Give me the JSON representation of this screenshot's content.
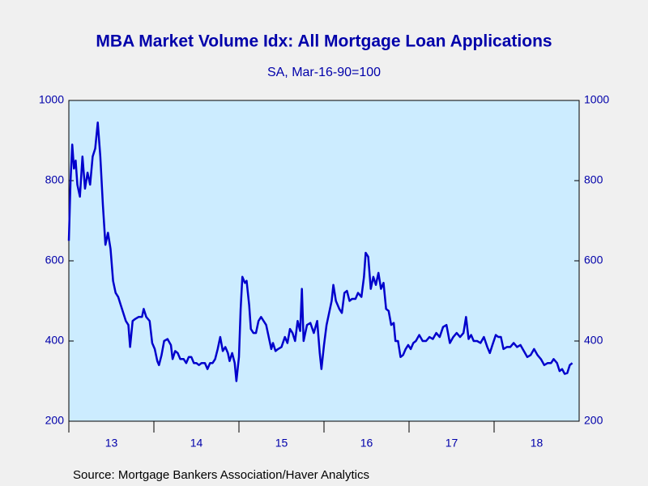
{
  "chart_data": {
    "type": "line",
    "title": "MBA Market Volume Idx: All Mortgage Loan Applications",
    "subtitle": "SA, Mar-16-90=100",
    "source": "Source:  Mortgage Bankers Association/Haver Analytics",
    "x": [
      2013.0,
      2013.02,
      2013.04,
      2013.06,
      2013.08,
      2013.1,
      2013.13,
      2013.16,
      2013.19,
      2013.22,
      2013.25,
      2013.28,
      2013.31,
      2013.34,
      2013.37,
      2013.4,
      2013.43,
      2013.46,
      2013.49,
      2013.52,
      2013.55,
      2013.58,
      2013.61,
      2013.64,
      2013.67,
      2013.7,
      2013.72,
      2013.75,
      2013.78,
      2013.82,
      2013.86,
      2013.88,
      2013.91,
      2013.95,
      2013.98,
      2014.01,
      2014.04,
      2014.06,
      2014.09,
      2014.12,
      2014.16,
      2014.2,
      2014.22,
      2014.25,
      2014.28,
      2014.31,
      2014.35,
      2014.38,
      2014.41,
      2014.44,
      2014.47,
      2014.5,
      2014.53,
      2014.56,
      2014.6,
      2014.63,
      2014.66,
      2014.69,
      2014.72,
      2014.75,
      2014.78,
      2014.81,
      2014.84,
      2014.87,
      2014.89,
      2014.92,
      2014.95,
      2014.97,
      2015.0,
      2015.02,
      2015.04,
      2015.07,
      2015.09,
      2015.12,
      2015.14,
      2015.17,
      2015.2,
      2015.23,
      2015.26,
      2015.29,
      2015.32,
      2015.35,
      2015.38,
      2015.4,
      2015.43,
      2015.46,
      2015.5,
      2015.54,
      2015.57,
      2015.6,
      2015.63,
      2015.66,
      2015.69,
      2015.72,
      2015.74,
      2015.76,
      2015.8,
      2015.84,
      2015.88,
      2015.92,
      2015.95,
      2015.97,
      2016.0,
      2016.03,
      2016.06,
      2016.09,
      2016.11,
      2016.14,
      2016.18,
      2016.21,
      2016.24,
      2016.27,
      2016.3,
      2016.33,
      2016.37,
      2016.4,
      2016.44,
      2016.47,
      2016.49,
      2016.52,
      2016.55,
      2016.58,
      2016.61,
      2016.64,
      2016.67,
      2016.7,
      2016.73,
      2016.76,
      2016.79,
      2016.82,
      2016.84,
      2016.87,
      2016.9,
      2016.93,
      2016.96,
      2016.99,
      2017.02,
      2017.05,
      2017.08,
      2017.12,
      2017.16,
      2017.2,
      2017.24,
      2017.28,
      2017.32,
      2017.36,
      2017.4,
      2017.44,
      2017.48,
      2017.52,
      2017.56,
      2017.6,
      2017.64,
      2017.67,
      2017.7,
      2017.73,
      2017.76,
      2017.8,
      2017.84,
      2017.88,
      2017.92,
      2017.95,
      2017.98,
      2018.02,
      2018.05,
      2018.08,
      2018.11,
      2018.15,
      2018.19,
      2018.23,
      2018.27,
      2018.31,
      2018.35,
      2018.39,
      2018.43,
      2018.47,
      2018.51,
      2018.55,
      2018.59,
      2018.63,
      2018.67,
      2018.7,
      2018.74,
      2018.77,
      2018.8,
      2018.83,
      2018.86,
      2018.89,
      2018.92
    ],
    "series": [
      {
        "color": "#0000cc",
        "values": [
          650,
          800,
          890,
          830,
          850,
          790,
          760,
          860,
          780,
          820,
          790,
          860,
          880,
          945,
          860,
          740,
          640,
          670,
          630,
          550,
          520,
          510,
          490,
          470,
          450,
          440,
          385,
          450,
          455,
          460,
          460,
          480,
          460,
          450,
          395,
          380,
          350,
          340,
          365,
          400,
          405,
          390,
          355,
          375,
          370,
          355,
          355,
          345,
          360,
          360,
          345,
          345,
          340,
          345,
          345,
          330,
          345,
          345,
          355,
          380,
          410,
          375,
          385,
          370,
          350,
          370,
          345,
          300,
          360,
          480,
          560,
          545,
          550,
          490,
          430,
          420,
          420,
          450,
          460,
          450,
          440,
          410,
          380,
          395,
          375,
          380,
          385,
          410,
          395,
          430,
          420,
          400,
          450,
          425,
          530,
          400,
          440,
          445,
          420,
          450,
          370,
          330,
          390,
          440,
          470,
          500,
          540,
          500,
          480,
          470,
          520,
          525,
          500,
          505,
          505,
          520,
          510,
          560,
          620,
          610,
          530,
          560,
          540,
          570,
          530,
          545,
          480,
          475,
          440,
          445,
          400,
          400,
          360,
          365,
          380,
          390,
          380,
          395,
          400,
          415,
          400,
          400,
          410,
          405,
          420,
          410,
          435,
          440,
          395,
          410,
          420,
          410,
          420,
          460,
          405,
          415,
          400,
          400,
          395,
          410,
          385,
          370,
          390,
          415,
          410,
          410,
          380,
          385,
          385,
          395,
          385,
          390,
          375,
          360,
          365,
          380,
          365,
          355,
          340,
          345,
          345,
          355,
          345,
          325,
          330,
          318,
          320,
          340,
          345
        ]
      }
    ],
    "xlim": [
      2013,
      2019
    ],
    "xticks": [
      {
        "value": 2013.5,
        "label": "13"
      },
      {
        "value": 2014.5,
        "label": "14"
      },
      {
        "value": 2015.5,
        "label": "15"
      },
      {
        "value": 2016.5,
        "label": "16"
      },
      {
        "value": 2017.5,
        "label": "17"
      },
      {
        "value": 2018.5,
        "label": "18"
      }
    ],
    "ylim": [
      200,
      1000
    ],
    "yticks": [
      200,
      400,
      600,
      800,
      1000
    ],
    "y2lim": [
      200,
      1000
    ],
    "y2ticks": [
      200,
      400,
      600,
      800,
      1000
    ]
  }
}
